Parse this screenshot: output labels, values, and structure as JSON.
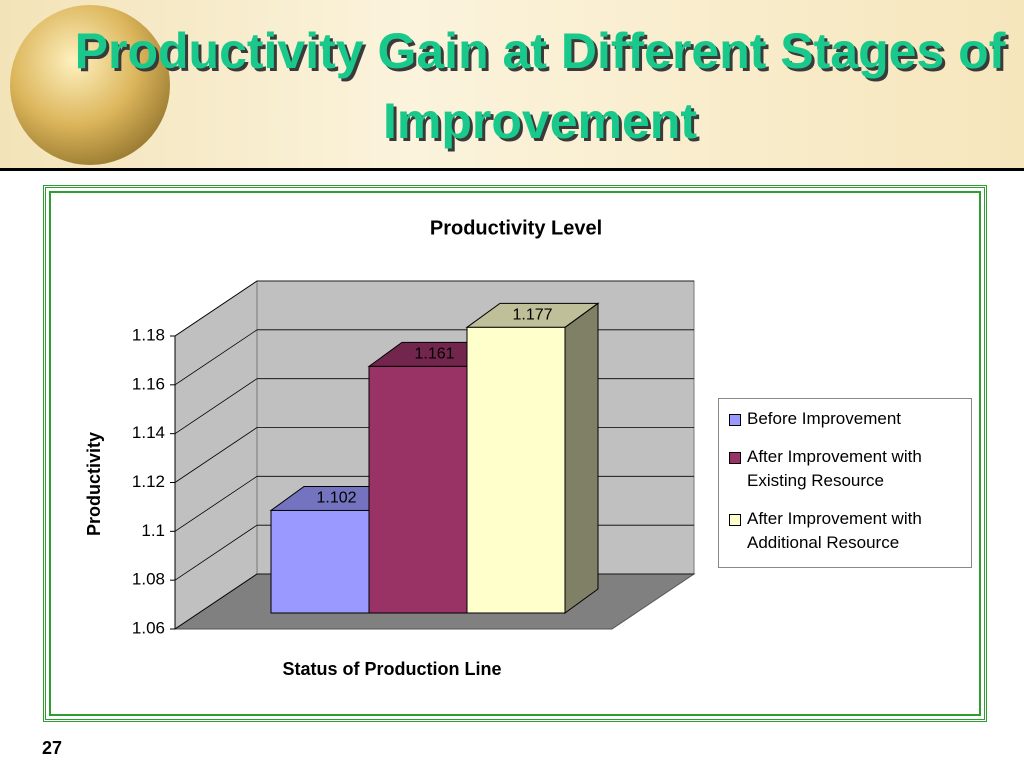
{
  "header": {
    "title": "Productivity Gain at Different Stages of Improvement"
  },
  "chart_data": {
    "type": "bar3d",
    "title": "Productivity Level",
    "ylabel": "Productivity",
    "xlabel": "Status of Production Line",
    "series": [
      {
        "name": "Before Improvement",
        "color": "#9999ff",
        "values": [
          1.102
        ]
      },
      {
        "name": "After Improvement with Existing Resource",
        "color": "#993366",
        "values": [
          1.161
        ]
      },
      {
        "name": "After Improvement with Additional Resource",
        "color": "#ffffcc",
        "values": [
          1.177
        ]
      }
    ],
    "ylim": [
      1.06,
      1.18
    ],
    "yticks": [
      1.06,
      1.08,
      1.1,
      1.12,
      1.14,
      1.16,
      1.18
    ],
    "grid": true,
    "legend": "right"
  },
  "footer": {
    "slide_number": "27"
  }
}
